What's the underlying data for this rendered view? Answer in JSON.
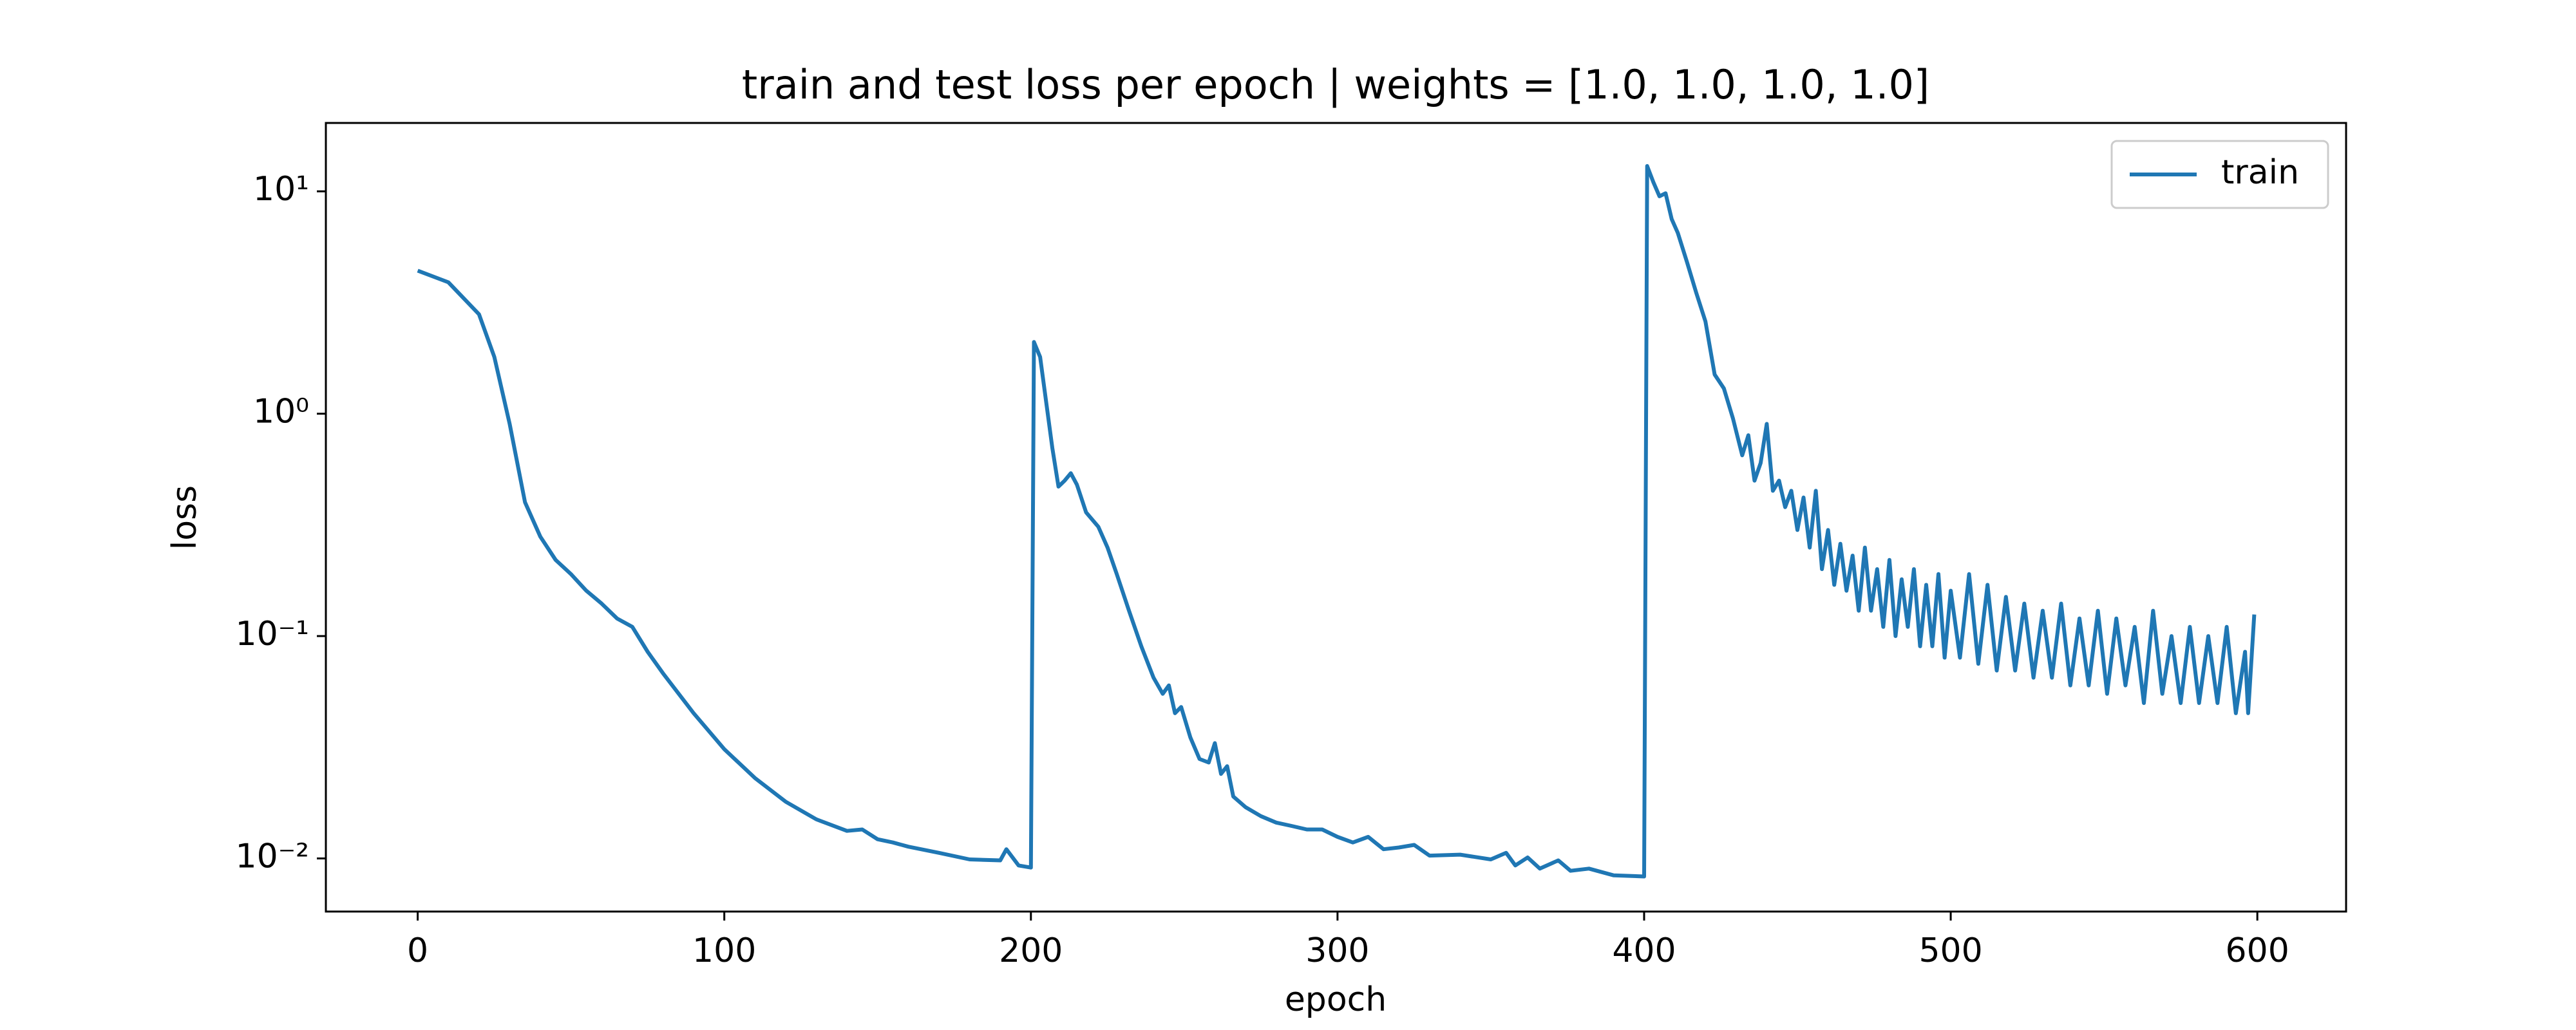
{
  "chart_data": {
    "type": "line",
    "title": "train and test loss per epoch | weights = [1.0, 1.0, 1.0, 1.0]",
    "xlabel": "epoch",
    "ylabel": "loss",
    "yscale": "log",
    "legend": "upper right",
    "xlim": [
      -29.95,
      628.95
    ],
    "xticks": [
      0,
      100,
      200,
      300,
      400,
      500,
      600
    ],
    "ylim": [
      0.00577,
      20.3
    ],
    "yticks": [
      {
        "value": 0.01,
        "label": "10⁻²"
      },
      {
        "value": 0.1,
        "label": "10⁻¹"
      },
      {
        "value": 1,
        "label": "10⁰"
      },
      {
        "value": 10,
        "label": "10¹"
      }
    ],
    "x": [
      0,
      10,
      20,
      25,
      30,
      35,
      40,
      45,
      50,
      55,
      60,
      65,
      70,
      75,
      80,
      90,
      100,
      110,
      120,
      130,
      140,
      145,
      150,
      155,
      160,
      170,
      180,
      190,
      192,
      196,
      200,
      201,
      203,
      207,
      209,
      211,
      213,
      215,
      218,
      222,
      225,
      228,
      232,
      236,
      240,
      243,
      245,
      247,
      249,
      252,
      255,
      258,
      260,
      262,
      264,
      266,
      270,
      275,
      280,
      285,
      290,
      295,
      300,
      305,
      310,
      315,
      320,
      325,
      330,
      340,
      350,
      355,
      358,
      362,
      366,
      372,
      376,
      382,
      390,
      400,
      401,
      403,
      405,
      407,
      409,
      411,
      414,
      417,
      420,
      423,
      426,
      429,
      432,
      434,
      436,
      438,
      440,
      442,
      444,
      446,
      448,
      450,
      452,
      454,
      456,
      458,
      460,
      462,
      464,
      466,
      468,
      470,
      472,
      474,
      476,
      478,
      480,
      482,
      484,
      486,
      488,
      490,
      492,
      494,
      496,
      498,
      500,
      503,
      506,
      509,
      512,
      515,
      518,
      521,
      524,
      527,
      530,
      533,
      536,
      539,
      542,
      545,
      548,
      551,
      554,
      557,
      560,
      563,
      566,
      569,
      572,
      575,
      578,
      581,
      584,
      587,
      590,
      593,
      596,
      597,
      599
    ],
    "series": [
      {
        "name": "train",
        "color": "#1f77b4",
        "values": [
          4.4,
          3.9,
          2.8,
          1.8,
          0.9,
          0.4,
          0.28,
          0.22,
          0.19,
          0.16,
          0.14,
          0.12,
          0.11,
          0.085,
          0.068,
          0.045,
          0.031,
          0.023,
          0.018,
          0.015,
          0.0133,
          0.0135,
          0.0122,
          0.0118,
          0.0113,
          0.0106,
          0.0099,
          0.0098,
          0.011,
          0.0093,
          0.0091,
          2.1,
          1.8,
          0.7,
          0.47,
          0.5,
          0.54,
          0.48,
          0.36,
          0.31,
          0.25,
          0.19,
          0.13,
          0.09,
          0.065,
          0.055,
          0.06,
          0.045,
          0.048,
          0.035,
          0.028,
          0.027,
          0.033,
          0.024,
          0.026,
          0.019,
          0.017,
          0.0155,
          0.0145,
          0.014,
          0.0135,
          0.0135,
          0.0125,
          0.0118,
          0.0125,
          0.011,
          0.0112,
          0.0115,
          0.0103,
          0.0104,
          0.0099,
          0.0106,
          0.0093,
          0.0101,
          0.009,
          0.0098,
          0.0088,
          0.009,
          0.0084,
          0.0083,
          13,
          11,
          9.5,
          9.8,
          7.5,
          6.5,
          4.8,
          3.5,
          2.6,
          1.5,
          1.3,
          0.95,
          0.65,
          0.8,
          0.5,
          0.6,
          0.9,
          0.45,
          0.5,
          0.38,
          0.45,
          0.3,
          0.42,
          0.25,
          0.45,
          0.2,
          0.3,
          0.17,
          0.26,
          0.16,
          0.23,
          0.13,
          0.25,
          0.13,
          0.2,
          0.11,
          0.22,
          0.1,
          0.18,
          0.11,
          0.2,
          0.09,
          0.17,
          0.09,
          0.19,
          0.08,
          0.16,
          0.08,
          0.19,
          0.075,
          0.17,
          0.07,
          0.15,
          0.07,
          0.14,
          0.065,
          0.13,
          0.065,
          0.14,
          0.06,
          0.12,
          0.06,
          0.13,
          0.055,
          0.12,
          0.06,
          0.11,
          0.05,
          0.13,
          0.055,
          0.1,
          0.05,
          0.11,
          0.05,
          0.1,
          0.05,
          0.11,
          0.045,
          0.085,
          0.045,
          0.125
        ]
      }
    ]
  }
}
